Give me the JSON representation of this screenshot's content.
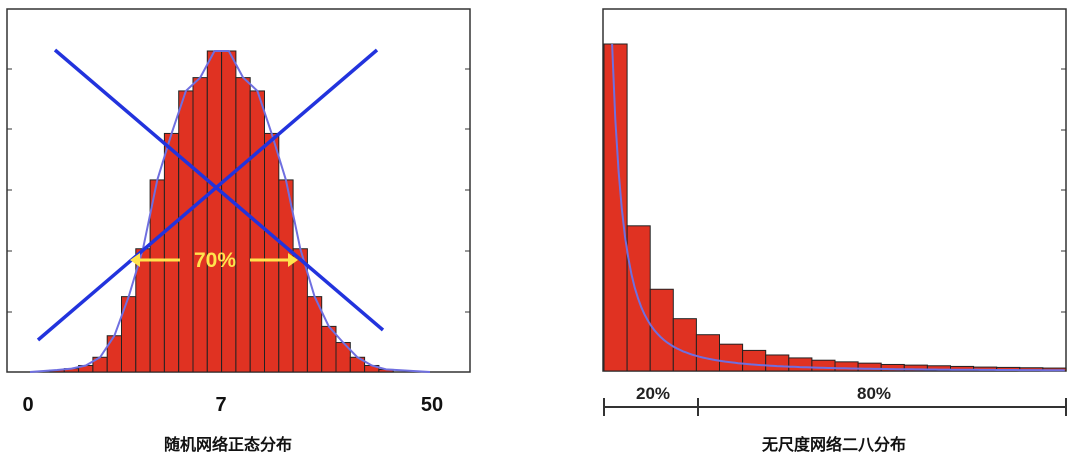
{
  "chart_data": [
    {
      "type": "bar",
      "caption": "随机网络正态分布",
      "x_tick_labels": [
        "0",
        "7",
        "50"
      ],
      "annotation": "70%",
      "crossed_out": true,
      "values": [
        0.7,
        1.2,
        2.3,
        5.2,
        12.8,
        26.6,
        43.5,
        67.8,
        84.2,
        99.2,
        103.9,
        113.3,
        113.3,
        103.9,
        99.2,
        84.2,
        67.8,
        43.5,
        26.6,
        16.1,
        10.4,
        5.2,
        2.3,
        0.9
      ],
      "fit": "normal",
      "colors": {
        "bar_fill": "#e03222",
        "bar_edge": "#222222",
        "fit_line": "#6f6fe0",
        "cross": "#2233dd",
        "annotation": "#ffe44d"
      }
    },
    {
      "type": "bar",
      "caption": "无尺度网络二八分布",
      "segments": [
        "20%",
        "80%"
      ],
      "values": [
        100,
        44.4,
        25,
        16,
        11.1,
        8.2,
        6.3,
        4.9,
        4,
        3.3,
        2.8,
        2.4,
        2,
        1.8,
        1.6,
        1.4,
        1.2,
        1.1,
        1,
        0.9
      ],
      "fit": "power-law",
      "colors": {
        "bar_fill": "#e03222",
        "bar_edge": "#222222",
        "fit_line": "#6f6fe0"
      }
    }
  ]
}
